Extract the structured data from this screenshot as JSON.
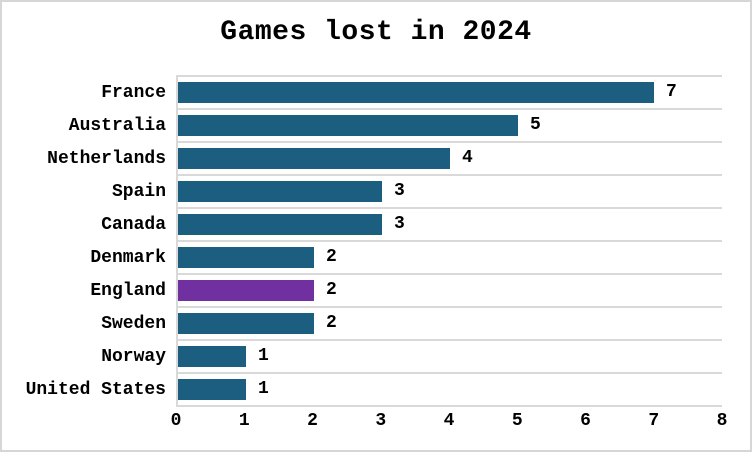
{
  "title": "Games lost in 2024",
  "chart_data": {
    "type": "bar",
    "orientation": "horizontal",
    "title": "Games lost in 2024",
    "categories": [
      "France",
      "Australia",
      "Netherlands",
      "Spain",
      "Canada",
      "Denmark",
      "England",
      "Sweden",
      "Norway",
      "United States"
    ],
    "values": [
      7,
      5,
      4,
      3,
      3,
      2,
      2,
      2,
      1,
      1
    ],
    "value_labels": [
      "7",
      "5",
      "4",
      "3",
      "3",
      "2",
      "2",
      "2",
      "1",
      "1"
    ],
    "xticks": [
      "0",
      "1",
      "2",
      "3",
      "4",
      "5",
      "6",
      "7",
      "8"
    ],
    "xlim": [
      0,
      8
    ],
    "xlabel": "",
    "ylabel": "",
    "legend": "none",
    "grid": "horizontal category separators, light gray",
    "highlighted_category": "England",
    "colors": {
      "bar": "#1b5e80",
      "highlight": "#7030a0",
      "gridline": "#d9d9da",
      "axis_line": "#d9d9da",
      "text": "#000000",
      "background": "#ffffff",
      "figure_border": "#d6d6d8"
    }
  }
}
